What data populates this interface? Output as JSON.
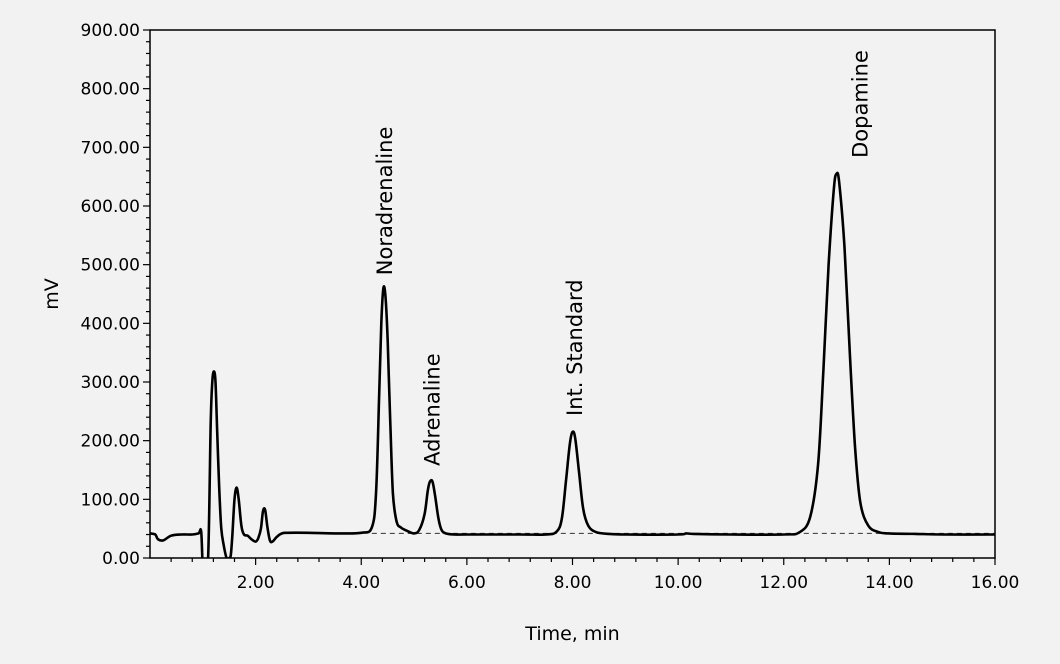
{
  "chart_data": {
    "type": "line",
    "title": "",
    "xlabel": "Time, min",
    "ylabel": "mV",
    "xlim": [
      0,
      16
    ],
    "ylim": [
      0,
      900
    ],
    "grid": false,
    "legend": "none",
    "x_ticks": [
      2,
      4,
      6,
      8,
      10,
      12,
      14,
      16
    ],
    "x_tick_labels": [
      "2.00",
      "4.00",
      "6.00",
      "8.00",
      "10.00",
      "12.00",
      "14.00",
      "16.00"
    ],
    "y_ticks": [
      0,
      100,
      200,
      300,
      400,
      500,
      600,
      700,
      800,
      900
    ],
    "y_tick_labels": [
      "0.00",
      "100.00",
      "200.00",
      "300.00",
      "400.00",
      "500.00",
      "600.00",
      "700.00",
      "800.00",
      "900.00"
    ],
    "colors": {
      "trace": "#000000",
      "baseline": "#333333",
      "background": "#f2f2f2"
    },
    "series": [
      {
        "x": [
          0,
          0.1,
          0.15,
          0.25,
          0.4,
          0.6,
          0.8,
          0.92,
          0.97,
          1.0,
          1.03,
          1.1,
          1.15,
          1.18,
          1.21,
          1.24,
          1.27,
          1.31,
          1.35,
          1.4,
          1.45,
          1.5,
          1.53,
          1.56,
          1.6,
          1.64,
          1.68,
          1.73,
          1.78,
          1.85,
          1.92,
          2.0,
          2.05,
          2.1,
          2.14,
          2.18,
          2.22,
          2.27,
          2.32,
          2.4,
          2.5,
          2.6,
          3.0,
          3.5,
          4.0,
          4.2,
          4.28,
          4.34,
          4.38,
          4.42,
          4.46,
          4.5,
          4.55,
          4.6,
          4.67,
          4.75,
          4.85,
          5.0,
          5.1,
          5.2,
          5.26,
          5.3,
          5.35,
          5.4,
          5.46,
          5.52,
          5.6,
          5.75,
          6.0,
          7.0,
          7.5,
          7.7,
          7.8,
          7.88,
          7.95,
          8.0,
          8.05,
          8.12,
          8.2,
          8.3,
          8.45,
          8.7,
          9.0,
          10.0,
          10.15,
          10.3,
          11.0,
          12.0,
          12.3,
          12.5,
          12.65,
          12.75,
          12.85,
          12.95,
          13.0,
          13.05,
          13.15,
          13.25,
          13.35,
          13.45,
          13.6,
          13.8,
          14.0,
          14.5,
          15.0,
          16.0
        ],
        "y": [
          42,
          40,
          32,
          30,
          38,
          40,
          40,
          42,
          45,
          -20,
          -20,
          0,
          230,
          300,
          318,
          300,
          220,
          120,
          50,
          20,
          0,
          0,
          5,
          40,
          100,
          120,
          100,
          55,
          40,
          38,
          32,
          28,
          34,
          50,
          80,
          82,
          55,
          30,
          28,
          36,
          42,
          43,
          43,
          42,
          43,
          52,
          110,
          280,
          400,
          460,
          445,
          370,
          230,
          110,
          62,
          52,
          47,
          42,
          48,
          75,
          115,
          130,
          130,
          105,
          68,
          48,
          42,
          40,
          40,
          40,
          40,
          45,
          68,
          135,
          195,
          215,
          205,
          150,
          85,
          55,
          44,
          41,
          40,
          40,
          42,
          41,
          40,
          40,
          44,
          70,
          160,
          320,
          500,
          630,
          655,
          640,
          530,
          350,
          190,
          95,
          55,
          44,
          42,
          41,
          40,
          40
        ]
      }
    ],
    "baseline": {
      "x": [
        4.2,
        16.0
      ],
      "y": [
        42,
        42
      ],
      "style": "dashed"
    },
    "annotations": [
      {
        "text": "Noradrenaline",
        "x": 4.45,
        "y": 465
      },
      {
        "text": "Adrenaline",
        "x": 5.35,
        "y": 140
      },
      {
        "text": "Int. Standard",
        "x": 8.05,
        "y": 225
      },
      {
        "text": "Dopamine",
        "x": 13.45,
        "y": 665
      }
    ]
  }
}
